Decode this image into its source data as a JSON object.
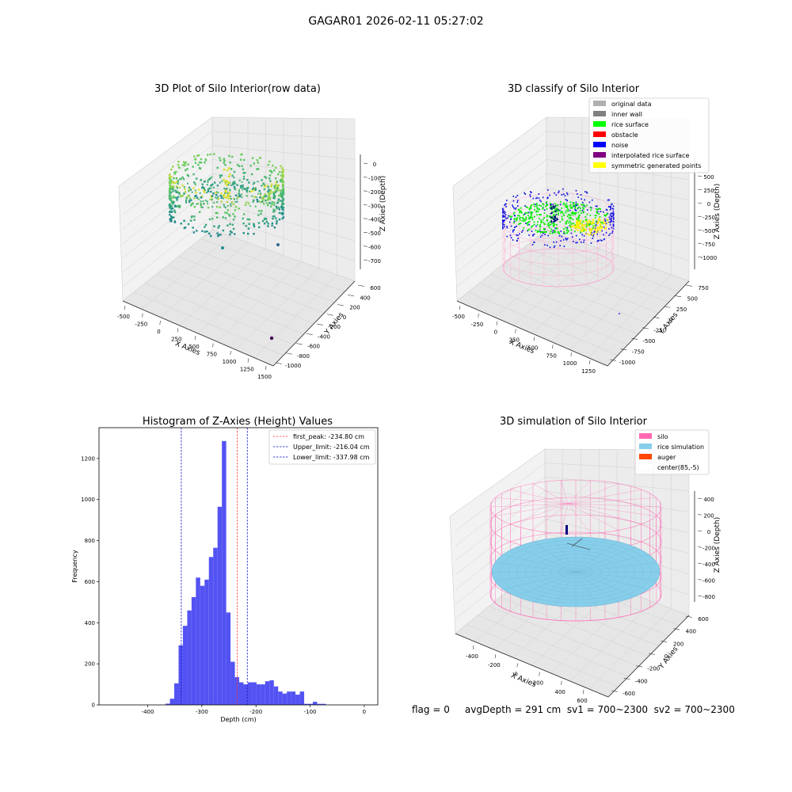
{
  "suptitle": "GAGAR01 2026-02-11 05:27:02",
  "status_line": "flag = 0     avgDepth = 291 cm  sv1 = 700~2300  sv2 = 700~2300",
  "colors": {
    "hist_bar": "#4a4af2",
    "peak_line": "#ff3b3b",
    "limit_line": "#1010c8",
    "silo_wire": "#ff69b4",
    "rice": "#87ceeb",
    "auger": "#ff4500"
  },
  "chart_data": [
    {
      "type": "scatter3d",
      "title": "3D Plot of Silo Interior(row data)",
      "xlabel": "X Axies",
      "ylabel": "Y Axies",
      "zlabel": "Z Axies (Depth)",
      "x_ticks": [
        "-500",
        "-250",
        "0",
        "250",
        "500",
        "750",
        "1000",
        "1250",
        "1500"
      ],
      "y_ticks": [
        "600",
        "400",
        "200",
        "0",
        "-200",
        "-400",
        "-600",
        "-800",
        "-1000"
      ],
      "z_ticks": [
        "0",
        "-100",
        "-200",
        "-300",
        "-400",
        "-500",
        "-600",
        "-700"
      ],
      "colormap": "viridis"
    },
    {
      "type": "scatter3d",
      "title": "3D classify of Silo Interior",
      "xlabel": "X Axies",
      "ylabel": "Y Axies",
      "zlabel": "Z Axies (Depth)",
      "x_ticks": [
        "-500",
        "-250",
        "0",
        "250",
        "500",
        "750",
        "1000",
        "1250"
      ],
      "y_ticks": [
        "750",
        "500",
        "250",
        "0",
        "-250",
        "-500",
        "-750",
        "-1000"
      ],
      "z_ticks": [
        "500",
        "250",
        "0",
        "-250",
        "-500",
        "-750",
        "-1000"
      ],
      "legend": [
        {
          "label": "original data",
          "color": "#b0b0b0"
        },
        {
          "label": "inner wall",
          "color": "#808080"
        },
        {
          "label": "rice surface",
          "color": "#00ff00"
        },
        {
          "label": "obstacle",
          "color": "#ff0000"
        },
        {
          "label": "noise",
          "color": "#0000ff"
        },
        {
          "label": "interpolated rice surface",
          "color": "#800080"
        },
        {
          "label": "symmetric generated points",
          "color": "#ffff00"
        }
      ],
      "legend_position": "top-right"
    },
    {
      "type": "bar",
      "title": "Histogram of Z-Axies (Height) Values",
      "xlabel": "Depth (cm)",
      "ylabel": "Frequency",
      "xlim": [
        -490,
        25
      ],
      "ylim": [
        0,
        1350
      ],
      "x_ticks": [
        -400,
        -300,
        -200,
        -100,
        0
      ],
      "y_ticks": [
        0,
        200,
        400,
        600,
        800,
        1000,
        1200
      ],
      "bin_edges_start": -375,
      "bin_width": 8,
      "values": [
        0,
        6,
        30,
        105,
        290,
        385,
        460,
        525,
        620,
        580,
        610,
        720,
        765,
        965,
        1285,
        450,
        210,
        135,
        110,
        100,
        110,
        110,
        100,
        100,
        115,
        120,
        90,
        65,
        55,
        65,
        65,
        50,
        65,
        5,
        5,
        15,
        5,
        5
      ],
      "vlines": [
        {
          "label": "first_peak: -234.80 cm",
          "x": -234.8,
          "color": "#ff3b3b"
        },
        {
          "label": "Upper_limit: -216.04 cm",
          "x": -216.04,
          "color": "#1010c8"
        },
        {
          "label": "Lower_limit: -337.98 cm",
          "x": -337.98,
          "color": "#1010c8"
        }
      ],
      "legend_position": "top-right"
    },
    {
      "type": "surface3d",
      "title": "3D simulation of Silo Interior",
      "xlabel": "X Axies",
      "ylabel": "Y Axies",
      "zlabel": "Z Axies (Depth)",
      "x_ticks": [
        "-400",
        "-200",
        "0",
        "200",
        "400",
        "600"
      ],
      "y_ticks": [
        "600",
        "400",
        "200",
        "0",
        "-200",
        "-400",
        "-600"
      ],
      "z_ticks": [
        "400",
        "200",
        "0",
        "-200",
        "-400",
        "-600",
        "-800"
      ],
      "legend": [
        {
          "label": "silo",
          "color": "#ff69b4"
        },
        {
          "label": "rice simulation",
          "color": "#87ceeb"
        },
        {
          "label": "auger",
          "color": "#ff4500"
        },
        {
          "label": "center(85,-5)",
          "color": "#ffffff"
        }
      ],
      "legend_position": "top-right"
    }
  ]
}
